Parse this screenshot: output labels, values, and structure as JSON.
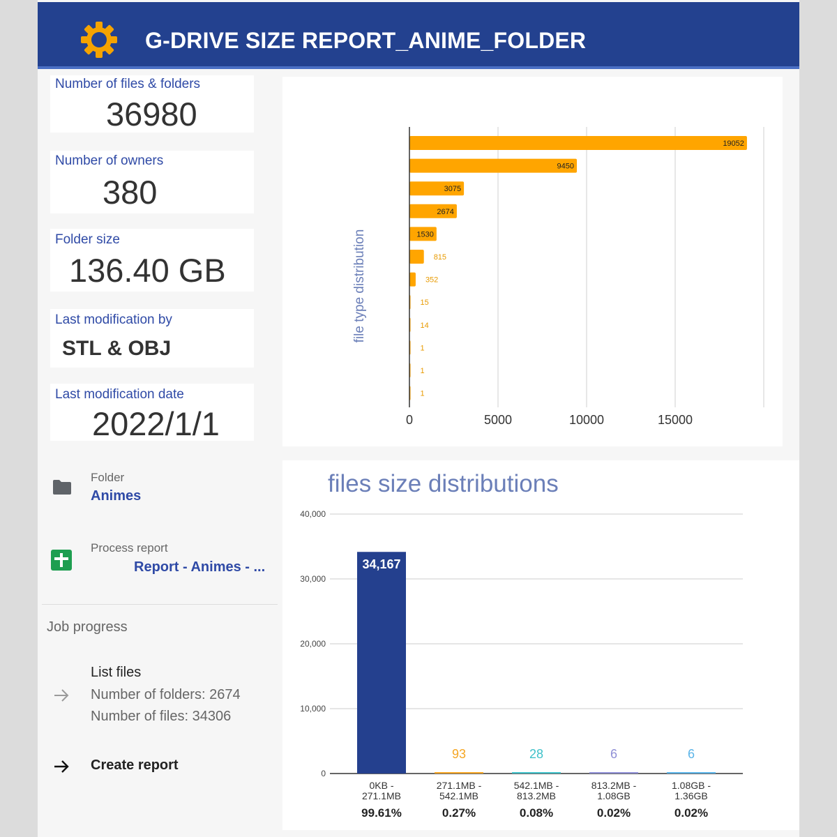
{
  "header": {
    "title": "G-DRIVE SIZE REPORT_ANIME_FOLDER",
    "icon": "gear-icon",
    "bg_color": "#23418f",
    "icon_color": "#f5a300"
  },
  "stats": [
    {
      "label": "Number of files & folders",
      "value": "36980"
    },
    {
      "label": "Number of owners",
      "value": "380"
    },
    {
      "label": "Folder size",
      "value": "136.40 GB"
    },
    {
      "label": "Last modification by",
      "value": "STL & OBJ"
    },
    {
      "label": "Last modification date",
      "value": "2022/1/1"
    }
  ],
  "folder": {
    "label": "Folder",
    "name": "Animes",
    "icon": "folder-icon"
  },
  "process_report": {
    "label": "Process report",
    "name": "Report - Animes - ...",
    "icon": "sheets-icon"
  },
  "job_progress": {
    "title": "Job progress",
    "step1": {
      "title": "List files",
      "line1": "Number of folders: 2674",
      "line2": "Number of files: 34306",
      "icon": "arrow-right-icon"
    },
    "step2": {
      "title": "Create report",
      "icon": "arrow-right-icon"
    }
  },
  "chart_data": [
    {
      "type": "bar",
      "orientation": "horizontal",
      "ylabel": "file type distribution",
      "values": [
        19052,
        9450,
        3075,
        2674,
        1530,
        815,
        352,
        15,
        14,
        1,
        1,
        1
      ],
      "xlim": [
        0,
        20000
      ],
      "xticks": [
        0,
        5000,
        10000,
        15000
      ],
      "grid": true,
      "bar_color": "#ffa500"
    },
    {
      "type": "bar",
      "title": "files size distributions",
      "categories": [
        [
          "0KB -",
          "271.1MB"
        ],
        [
          "271.1MB -",
          "542.1MB"
        ],
        [
          "542.1MB -",
          "813.2MB"
        ],
        [
          "813.2MB -",
          "1.08GB"
        ],
        [
          "1.08GB -",
          "1.36GB"
        ]
      ],
      "values": [
        34167,
        93,
        28,
        6,
        6
      ],
      "value_labels": [
        "34,167",
        "93",
        "28",
        "6",
        "6"
      ],
      "percentages": [
        "99.61%",
        "0.27%",
        "0.08%",
        "0.02%",
        "0.02%"
      ],
      "ylim": [
        0,
        40000
      ],
      "yticks": [
        0,
        10000,
        20000,
        30000,
        40000
      ],
      "ytick_labels": [
        "0",
        "10,000",
        "20,000",
        "30,000",
        "40,000"
      ],
      "grid": true,
      "colors": [
        "#24408e",
        "#f5a623",
        "#3fc1c9",
        "#8f8fd6",
        "#5ab4e8"
      ]
    }
  ]
}
